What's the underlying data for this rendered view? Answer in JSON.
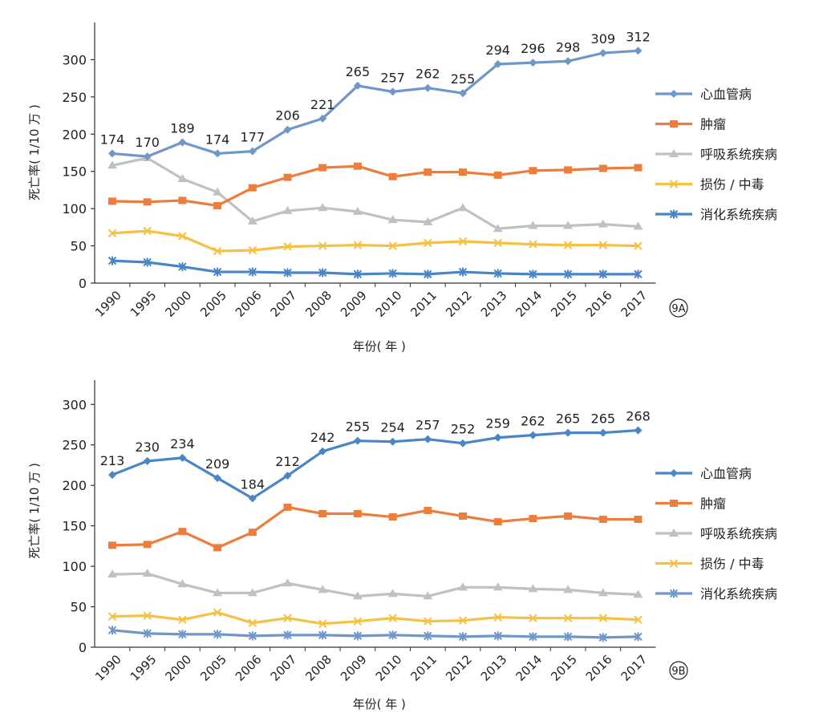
{
  "chart_data": [
    {
      "type": "line",
      "panel_label": "9A",
      "xlabel": "年份( 年 )",
      "ylabel": "死亡率( 1/10 万 )",
      "categories": [
        "1990",
        "1995",
        "2000",
        "2005",
        "2006",
        "2007",
        "2008",
        "2009",
        "2010",
        "2011",
        "2012",
        "2013",
        "2014",
        "2015",
        "2016",
        "2017"
      ],
      "ylim": [
        0,
        350
      ],
      "yticks": [
        0,
        50,
        100,
        150,
        200,
        250,
        300
      ],
      "grid": false,
      "legend_position": "right",
      "series": [
        {
          "name": "心血管病",
          "color": "#7097C9",
          "marker": "diamond",
          "labeled": true,
          "values": [
            174,
            170,
            189,
            174,
            177,
            206,
            221,
            265,
            257,
            262,
            255,
            294,
            296,
            298,
            309,
            312
          ]
        },
        {
          "name": "肿瘤",
          "color": "#EC7D3C",
          "marker": "square",
          "labeled": false,
          "values": [
            110,
            109,
            111,
            104,
            128,
            142,
            155,
            157,
            143,
            149,
            149,
            145,
            151,
            152,
            154,
            155
          ]
        },
        {
          "name": "呼吸系统疾病",
          "color": "#BFC1C2",
          "marker": "triangle",
          "labeled": false,
          "values": [
            158,
            168,
            140,
            122,
            83,
            97,
            101,
            96,
            85,
            82,
            101,
            73,
            77,
            77,
            79,
            76
          ]
        },
        {
          "name": "损伤 / 中毒",
          "color": "#F4C142",
          "marker": "x",
          "labeled": false,
          "values": [
            67,
            70,
            63,
            43,
            44,
            49,
            50,
            51,
            50,
            54,
            56,
            54,
            52,
            51,
            51,
            50
          ]
        },
        {
          "name": "消化系统疾病",
          "color": "#4A86C5",
          "marker": "star",
          "labeled": false,
          "values": [
            30,
            28,
            22,
            15,
            15,
            14,
            14,
            12,
            13,
            12,
            15,
            13,
            12,
            12,
            12,
            12
          ]
        }
      ]
    },
    {
      "type": "line",
      "panel_label": "9B",
      "xlabel": "年份( 年 )",
      "ylabel": "死亡率( 1/10 万 )",
      "categories": [
        "1990",
        "1995",
        "2000",
        "2005",
        "2006",
        "2007",
        "2008",
        "2009",
        "2010",
        "2011",
        "2012",
        "2013",
        "2014",
        "2015",
        "2016",
        "2017"
      ],
      "ylim": [
        0,
        330
      ],
      "yticks": [
        0,
        50,
        100,
        150,
        200,
        250,
        300
      ],
      "grid": false,
      "legend_position": "right",
      "series": [
        {
          "name": "心血管病",
          "color": "#4A86C5",
          "marker": "diamond",
          "labeled": true,
          "values": [
            213,
            230,
            234,
            209,
            184,
            212,
            242,
            255,
            254,
            257,
            252,
            259,
            262,
            265,
            265,
            268
          ]
        },
        {
          "name": "肿瘤",
          "color": "#EC7D3C",
          "marker": "square",
          "labeled": false,
          "values": [
            126,
            127,
            143,
            123,
            142,
            173,
            165,
            165,
            161,
            169,
            162,
            155,
            159,
            162,
            158,
            158
          ]
        },
        {
          "name": "呼吸系统疾病",
          "color": "#BFC1C2",
          "marker": "triangle",
          "labeled": false,
          "values": [
            90,
            91,
            78,
            67,
            67,
            79,
            71,
            63,
            66,
            63,
            74,
            74,
            72,
            71,
            67,
            65
          ]
        },
        {
          "name": "损伤 / 中毒",
          "color": "#F4C142",
          "marker": "x",
          "labeled": false,
          "values": [
            38,
            39,
            34,
            43,
            30,
            36,
            29,
            32,
            36,
            32,
            33,
            37,
            36,
            36,
            36,
            34
          ]
        },
        {
          "name": "消化系统疾病",
          "color": "#7097C9",
          "marker": "star",
          "labeled": false,
          "values": [
            21,
            17,
            16,
            16,
            14,
            15,
            15,
            14,
            15,
            14,
            13,
            14,
            13,
            13,
            12,
            13
          ]
        }
      ]
    }
  ]
}
